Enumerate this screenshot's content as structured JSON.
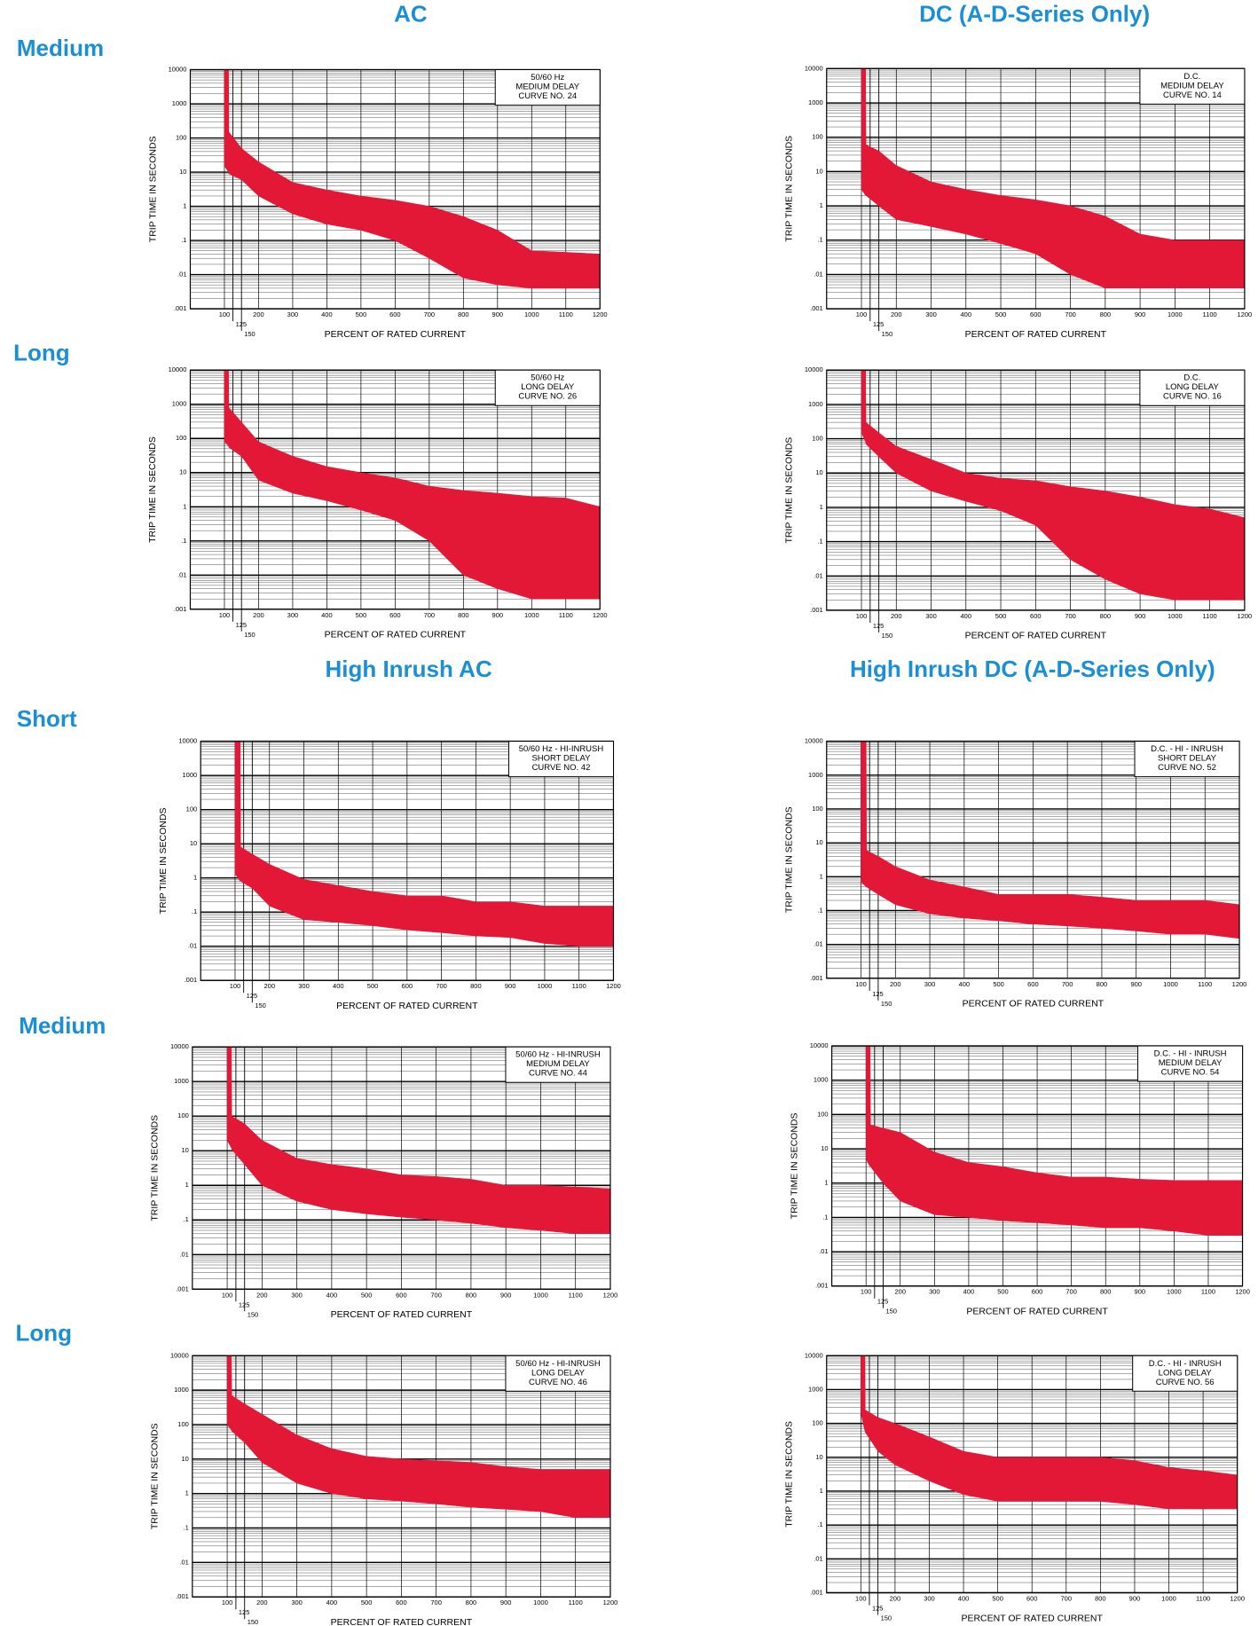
{
  "column_titles": [
    "AC",
    "DC (A-D-Series Only)",
    "High Inrush AC",
    "High Inrush DC (A-D-Series Only)"
  ],
  "row_labels": [
    "Medium",
    "Long",
    "Short",
    "Medium",
    "Long"
  ],
  "chart_data": [
    {
      "type": "band",
      "annotation": [
        "50/60 Hz",
        "MEDIUM DELAY",
        "CURVE NO. 24"
      ],
      "xlabel": "PERCENT OF RATED CURRENT",
      "ylabel": "TRIP TIME IN SECONDS",
      "color": "#e31837",
      "log_y": true,
      "grid": true,
      "x": [
        100,
        112,
        113,
        150,
        200,
        300,
        400,
        500,
        600,
        700,
        800,
        900,
        1000,
        1100,
        1200
      ],
      "upper": [
        10000,
        10000,
        150,
        50,
        20,
        5,
        3,
        2,
        1.5,
        1,
        0.5,
        0.2,
        0.05,
        0.045,
        0.04
      ],
      "lower": [
        15,
        10,
        9,
        6,
        2,
        0.6,
        0.3,
        0.2,
        0.1,
        0.03,
        0.008,
        0.005,
        0.004,
        0.004,
        0.004
      ],
      "xlim": [
        0,
        1200
      ],
      "ylim": [
        0.001,
        10000
      ],
      "xticks": [
        100,
        125,
        150,
        200,
        300,
        400,
        500,
        600,
        700,
        800,
        900,
        1000,
        1100,
        1200
      ],
      "yticks": [
        10000,
        1000,
        100,
        10,
        1,
        {
          "value": 0.1,
          "label": ".1"
        },
        {
          "value": 0.01,
          "label": ".01"
        },
        {
          "value": 0.001,
          "label": ".001"
        }
      ]
    },
    {
      "type": "band",
      "annotation": [
        "D.C.",
        "MEDIUM DELAY",
        "CURVE NO. 14"
      ],
      "xlabel": "PERCENT OF RATED CURRENT",
      "ylabel": "TRIP TIME IN SECONDS",
      "color": "#e31837",
      "log_y": true,
      "grid": true,
      "x": [
        100,
        112,
        113,
        150,
        200,
        300,
        400,
        500,
        600,
        700,
        800,
        900,
        1000,
        1100,
        1200
      ],
      "upper": [
        10000,
        10000,
        60,
        40,
        15,
        5,
        3,
        2,
        1.5,
        1,
        0.5,
        0.15,
        0.1,
        0.1,
        0.1
      ],
      "lower": [
        3,
        2,
        2,
        1,
        0.4,
        0.25,
        0.15,
        0.08,
        0.04,
        0.01,
        0.004,
        0.004,
        0.004,
        0.004,
        0.004
      ],
      "xlim": [
        0,
        1200
      ],
      "ylim": [
        0.001,
        10000
      ],
      "xticks": [
        100,
        125,
        150,
        200,
        300,
        400,
        500,
        600,
        700,
        800,
        900,
        1000,
        1100,
        1200
      ],
      "yticks": [
        10000,
        1000,
        100,
        10,
        1,
        {
          "value": 0.1,
          "label": ".1"
        },
        {
          "value": 0.01,
          "label": ".01"
        },
        {
          "value": 0.001,
          "label": ".001"
        }
      ]
    },
    {
      "type": "band",
      "annotation": [
        "50/60 Hz",
        "LONG DELAY",
        "CURVE NO. 26"
      ],
      "xlabel": "PERCENT OF RATED CURRENT",
      "ylabel": "TRIP TIME IN SECONDS",
      "color": "#e31837",
      "log_y": true,
      "grid": true,
      "x": [
        100,
        112,
        113,
        150,
        200,
        300,
        400,
        500,
        600,
        700,
        800,
        900,
        1000,
        1100,
        1200
      ],
      "upper": [
        10000,
        10000,
        800,
        300,
        80,
        30,
        15,
        10,
        7,
        4,
        3,
        2.5,
        2,
        1.8,
        1
      ],
      "lower": [
        80,
        60,
        55,
        30,
        6,
        2.5,
        1.5,
        0.8,
        0.4,
        0.1,
        0.01,
        0.004,
        0.002,
        0.002,
        0.002
      ],
      "xlim": [
        0,
        1200
      ],
      "ylim": [
        0.001,
        10000
      ],
      "xticks": [
        100,
        125,
        150,
        200,
        300,
        400,
        500,
        600,
        700,
        800,
        900,
        1000,
        1100,
        1200
      ],
      "yticks": [
        10000,
        1000,
        100,
        10,
        1,
        {
          "value": 0.1,
          "label": ".1"
        },
        {
          "value": 0.01,
          "label": ".01"
        },
        {
          "value": 0.001,
          "label": ".001"
        }
      ]
    },
    {
      "type": "band",
      "annotation": [
        "D.C.",
        "LONG DELAY",
        "CURVE NO. 16"
      ],
      "xlabel": "PERCENT OF RATED CURRENT",
      "ylabel": "TRIP TIME IN SECONDS",
      "color": "#e31837",
      "log_y": true,
      "grid": true,
      "x": [
        100,
        112,
        113,
        150,
        200,
        300,
        400,
        500,
        600,
        700,
        800,
        900,
        1000,
        1100,
        1200
      ],
      "upper": [
        10000,
        10000,
        300,
        150,
        60,
        25,
        10,
        7,
        6,
        4,
        3,
        2,
        1.2,
        0.9,
        0.5
      ],
      "lower": [
        150,
        80,
        70,
        30,
        10,
        3,
        1.5,
        0.8,
        0.3,
        0.03,
        0.008,
        0.003,
        0.002,
        0.002,
        0.002
      ],
      "xlim": [
        0,
        1200
      ],
      "ylim": [
        0.001,
        10000
      ],
      "xticks": [
        100,
        125,
        150,
        200,
        300,
        400,
        500,
        600,
        700,
        800,
        900,
        1000,
        1100,
        1200
      ],
      "yticks": [
        10000,
        1000,
        100,
        10,
        1,
        {
          "value": 0.1,
          "label": ".1"
        },
        {
          "value": 0.01,
          "label": ".01"
        },
        {
          "value": 0.001,
          "label": ".001"
        }
      ]
    },
    {
      "type": "band",
      "annotation": [
        "50/60 Hz - HI-INRUSH",
        "SHORT DELAY",
        "CURVE NO. 42"
      ],
      "xlabel": "PERCENT OF RATED CURRENT",
      "ylabel": "TRIP TIME IN SECONDS",
      "color": "#e31837",
      "log_y": true,
      "grid": true,
      "x": [
        100,
        115,
        116,
        150,
        200,
        300,
        400,
        500,
        600,
        700,
        800,
        900,
        1000,
        1100,
        1200
      ],
      "upper": [
        10000,
        10000,
        8,
        5,
        2.5,
        0.9,
        0.6,
        0.4,
        0.3,
        0.3,
        0.2,
        0.2,
        0.15,
        0.15,
        0.15
      ],
      "lower": [
        1.3,
        0.8,
        0.8,
        0.5,
        0.15,
        0.06,
        0.05,
        0.04,
        0.03,
        0.025,
        0.02,
        0.018,
        0.012,
        0.01,
        0.01
      ],
      "xlim": [
        0,
        1200
      ],
      "ylim": [
        0.001,
        10000
      ],
      "xticks": [
        100,
        125,
        150,
        200,
        300,
        400,
        500,
        600,
        700,
        800,
        900,
        1000,
        1100,
        1200
      ],
      "yticks": [
        10000,
        1000,
        100,
        10,
        1,
        {
          "value": 0.1,
          "label": ".1"
        },
        {
          "value": 0.01,
          "label": ".01"
        },
        {
          "value": 0.001,
          "label": ".001"
        }
      ]
    },
    {
      "type": "band",
      "annotation": [
        "D.C. - HI - INRUSH",
        "SHORT DELAY",
        "CURVE NO. 52"
      ],
      "xlabel": "PERCENT OF RATED CURRENT",
      "ylabel": "TRIP TIME IN SECONDS",
      "color": "#e31837",
      "log_y": true,
      "grid": true,
      "x": [
        100,
        115,
        116,
        150,
        200,
        300,
        400,
        500,
        600,
        700,
        800,
        900,
        1000,
        1100,
        1200
      ],
      "upper": [
        10000,
        10000,
        6,
        4,
        2,
        0.8,
        0.5,
        0.3,
        0.3,
        0.3,
        0.25,
        0.2,
        0.2,
        0.2,
        0.15
      ],
      "lower": [
        0.7,
        0.5,
        0.5,
        0.3,
        0.15,
        0.08,
        0.06,
        0.05,
        0.04,
        0.035,
        0.03,
        0.025,
        0.02,
        0.02,
        0.015
      ],
      "xlim": [
        0,
        1200
      ],
      "ylim": [
        0.001,
        10000
      ],
      "xticks": [
        100,
        125,
        150,
        200,
        300,
        400,
        500,
        600,
        700,
        800,
        900,
        1000,
        1100,
        1200
      ],
      "yticks": [
        10000,
        1000,
        100,
        10,
        1,
        {
          "value": 0.1,
          "label": ".1"
        },
        {
          "value": 0.01,
          "label": ".01"
        },
        {
          "value": 0.001,
          "label": ".001"
        }
      ]
    },
    {
      "type": "band",
      "annotation": [
        "50/60 Hz - HI-INRUSH",
        "MEDIUM DELAY",
        "CURVE NO. 44"
      ],
      "xlabel": "PERCENT OF RATED CURRENT",
      "ylabel": "TRIP TIME IN SECONDS",
      "color": "#e31837",
      "log_y": true,
      "grid": true,
      "x": [
        100,
        112,
        113,
        150,
        200,
        300,
        400,
        500,
        600,
        700,
        800,
        900,
        1000,
        1100,
        1200
      ],
      "upper": [
        10000,
        10000,
        100,
        60,
        20,
        6,
        4,
        3,
        2,
        1.8,
        1.5,
        1,
        1,
        0.9,
        0.8
      ],
      "lower": [
        20,
        12,
        11,
        4,
        1,
        0.35,
        0.2,
        0.15,
        0.12,
        0.1,
        0.08,
        0.06,
        0.05,
        0.04,
        0.04
      ],
      "xlim": [
        0,
        1200
      ],
      "ylim": [
        0.001,
        10000
      ],
      "xticks": [
        100,
        125,
        150,
        200,
        300,
        400,
        500,
        600,
        700,
        800,
        900,
        1000,
        1100,
        1200
      ],
      "yticks": [
        10000,
        1000,
        100,
        10,
        1,
        {
          "value": 0.1,
          "label": ".1"
        },
        {
          "value": 0.01,
          "label": ".01"
        },
        {
          "value": 0.001,
          "label": ".001"
        }
      ]
    },
    {
      "type": "band",
      "annotation": [
        "D.C. - HI - INRUSH",
        "MEDIUM DELAY",
        "CURVE NO. 54"
      ],
      "xlabel": "PERCENT OF RATED CURRENT",
      "ylabel": "TRIP TIME IN SECONDS",
      "color": "#e31837",
      "log_y": true,
      "grid": true,
      "x": [
        100,
        112,
        113,
        150,
        200,
        300,
        400,
        500,
        600,
        700,
        800,
        900,
        1000,
        1100,
        1200
      ],
      "upper": [
        10000,
        10000,
        50,
        40,
        30,
        8,
        4,
        3,
        2,
        1.5,
        1.5,
        1.3,
        1.2,
        1.2,
        1.2
      ],
      "lower": [
        5,
        3,
        3,
        1,
        0.3,
        0.12,
        0.1,
        0.08,
        0.07,
        0.06,
        0.05,
        0.05,
        0.04,
        0.03,
        0.03
      ],
      "xlim": [
        0,
        1200
      ],
      "ylim": [
        0.001,
        10000
      ],
      "xticks": [
        100,
        125,
        150,
        200,
        300,
        400,
        500,
        600,
        700,
        800,
        900,
        1000,
        1100,
        1200
      ],
      "yticks": [
        10000,
        1000,
        100,
        10,
        1,
        {
          "value": 0.1,
          "label": ".1"
        },
        {
          "value": 0.01,
          "label": ".01"
        },
        {
          "value": 0.001,
          "label": ".001"
        }
      ]
    },
    {
      "type": "band",
      "annotation": [
        "50/60 Hz - HI-INRUSH",
        "LONG DELAY",
        "CURVE NO. 46"
      ],
      "xlabel": "PERCENT OF RATED CURRENT",
      "ylabel": "TRIP TIME IN SECONDS",
      "color": "#e31837",
      "log_y": true,
      "grid": true,
      "x": [
        100,
        112,
        113,
        150,
        200,
        300,
        400,
        500,
        600,
        700,
        800,
        900,
        1000,
        1100,
        1200
      ],
      "upper": [
        10000,
        10000,
        700,
        400,
        200,
        50,
        20,
        12,
        10,
        9,
        8,
        6,
        5,
        5,
        5
      ],
      "lower": [
        100,
        70,
        65,
        30,
        8,
        2,
        1,
        0.7,
        0.6,
        0.5,
        0.4,
        0.35,
        0.3,
        0.2,
        0.2
      ],
      "xlim": [
        0,
        1200
      ],
      "ylim": [
        0.001,
        10000
      ],
      "xticks": [
        100,
        125,
        150,
        200,
        300,
        400,
        500,
        600,
        700,
        800,
        900,
        1000,
        1100,
        1200
      ],
      "yticks": [
        10000,
        1000,
        100,
        10,
        1,
        {
          "value": 0.1,
          "label": ".1"
        },
        {
          "value": 0.01,
          "label": ".01"
        },
        {
          "value": 0.001,
          "label": ".001"
        }
      ]
    },
    {
      "type": "band",
      "annotation": [
        "D.C. - HI - INRUSH",
        "LONG DELAY",
        "CURVE NO. 56"
      ],
      "xlabel": "PERCENT OF RATED CURRENT",
      "ylabel": "TRIP TIME IN SECONDS",
      "color": "#e31837",
      "log_y": true,
      "grid": true,
      "x": [
        100,
        112,
        113,
        150,
        200,
        300,
        400,
        500,
        600,
        700,
        800,
        900,
        1000,
        1100,
        1200
      ],
      "upper": [
        10000,
        10000,
        250,
        150,
        100,
        40,
        15,
        10,
        10,
        10,
        10,
        8,
        5,
        4,
        3
      ],
      "lower": [
        200,
        60,
        55,
        15,
        6,
        2,
        0.8,
        0.5,
        0.5,
        0.5,
        0.5,
        0.4,
        0.3,
        0.3,
        0.3
      ],
      "xlim": [
        0,
        1200
      ],
      "ylim": [
        0.001,
        10000
      ],
      "xticks": [
        100,
        125,
        150,
        200,
        300,
        400,
        500,
        600,
        700,
        800,
        900,
        1000,
        1100,
        1200
      ],
      "yticks": [
        10000,
        1000,
        100,
        10,
        1,
        {
          "value": 0.1,
          "label": ".1"
        },
        {
          "value": 0.01,
          "label": ".01"
        },
        {
          "value": 0.001,
          "label": ".001"
        }
      ]
    }
  ]
}
